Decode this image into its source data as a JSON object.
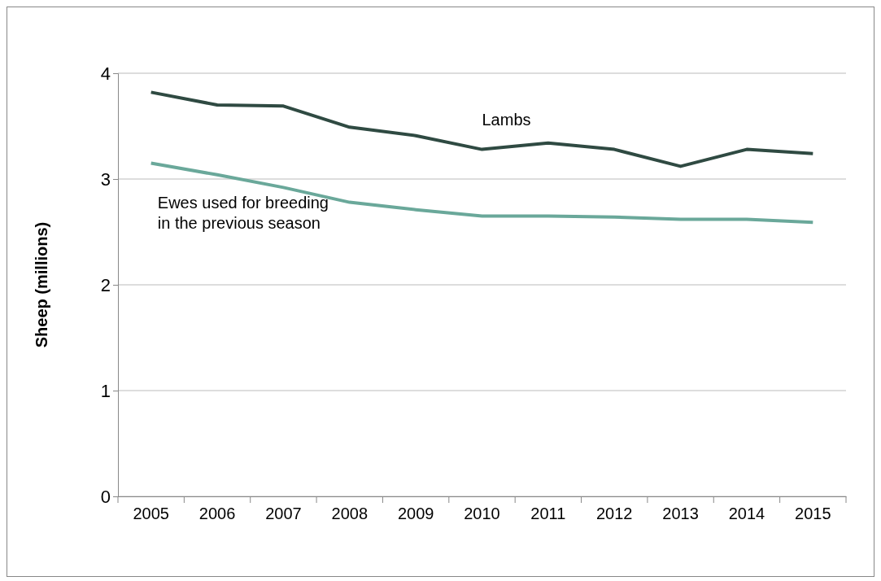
{
  "chart_data": {
    "type": "line",
    "ylabel": "Sheep (millions)",
    "categories": [
      "2005",
      "2006",
      "2007",
      "2008",
      "2009",
      "2010",
      "2011",
      "2012",
      "2013",
      "2014",
      "2015"
    ],
    "series": [
      {
        "name": "Lambs",
        "color": "#2f4a42",
        "values": [
          3.82,
          3.7,
          3.69,
          3.49,
          3.41,
          3.28,
          3.34,
          3.28,
          3.12,
          3.28,
          3.24
        ]
      },
      {
        "name": "Ewes used for breeding in the previous season",
        "color": "#6aa89a",
        "values": [
          3.15,
          3.04,
          2.92,
          2.78,
          2.71,
          2.65,
          2.65,
          2.64,
          2.62,
          2.62,
          2.59
        ]
      }
    ],
    "ylim": [
      0,
      4
    ],
    "yticks": [
      0,
      1,
      2,
      3,
      4
    ],
    "grid": "y",
    "legend": false,
    "marker": "none",
    "line_style": "solid"
  }
}
